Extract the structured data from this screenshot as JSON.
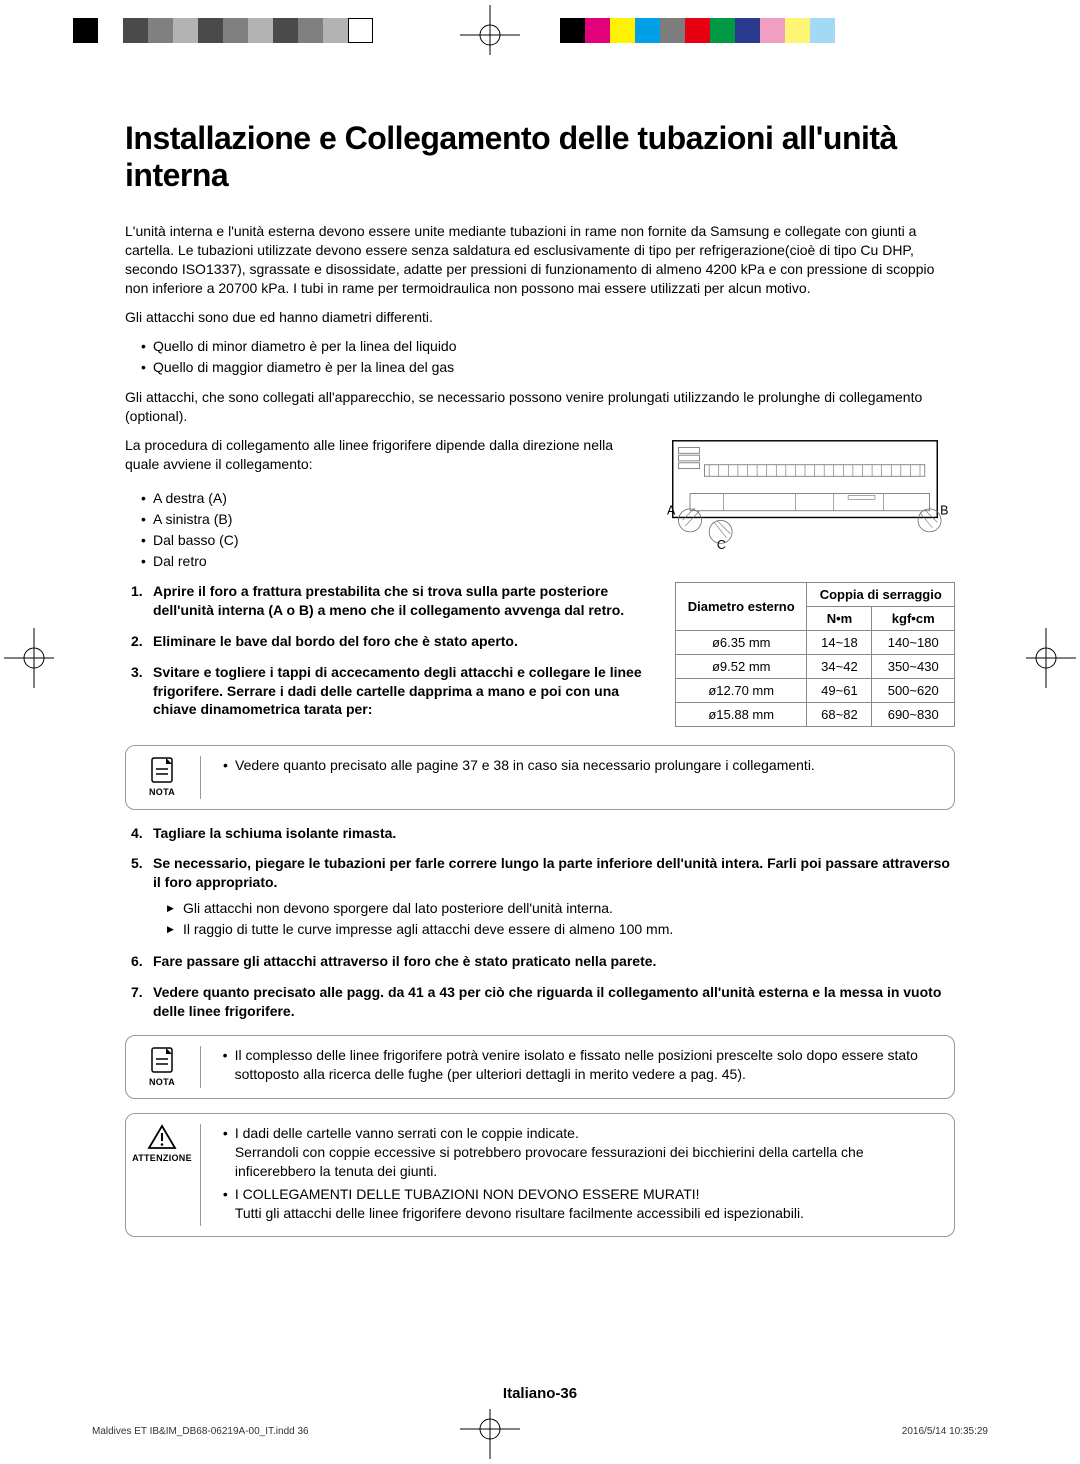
{
  "color_strip_left": [
    {
      "color": "#000000"
    },
    {
      "color": "#ffffff"
    },
    {
      "color": "#4a4a4a"
    },
    {
      "color": "#808080"
    },
    {
      "color": "#b3b3b3"
    },
    {
      "color": "#4a4a4a"
    },
    {
      "color": "#808080"
    },
    {
      "color": "#b3b3b3"
    },
    {
      "color": "#4a4a4a"
    },
    {
      "color": "#808080"
    },
    {
      "color": "#b3b3b3"
    },
    {
      "color": "none",
      "outlined": true
    }
  ],
  "color_strip_right": [
    {
      "color": "#000000"
    },
    {
      "color": "#e3007b"
    },
    {
      "color": "#fff100"
    },
    {
      "color": "#00a0e9"
    },
    {
      "color": "#7d7d7d"
    },
    {
      "color": "#e60012"
    },
    {
      "color": "#009944"
    },
    {
      "color": "#2a3a8f"
    },
    {
      "color": "#f19ec2"
    },
    {
      "color": "#fff575"
    },
    {
      "color": "#a3d9f5"
    },
    {
      "color": "#ffffff"
    }
  ],
  "title": "Installazione e Collegamento delle tubazioni all'unità interna",
  "intro": "L'unità interna e l'unità esterna devono essere unite mediante tubazioni in rame non fornite da Samsung e  collegate con giunti a cartella. Le tubazioni utilizzate devono essere senza saldatura ed esclusivamente di tipo per refrigerazione(cioè di tipo Cu DHP, secondo ISO1337), sgrassate e disossidate, adatte per pressioni di funzionamento di almeno 4200 kPa e con pressione di scoppio non inferiore a 20700 kPa. I tubi in rame per termoidraulica non possono mai essere utilizzati per alcun motivo.",
  "attachments_intro": "Gli attacchi sono due ed hanno diametri differenti.",
  "attachments_bullets": [
    "Quello di minor diametro è per la linea del liquido",
    "Quello di maggior diametro è per la linea del gas"
  ],
  "extension_note": "Gli attacchi, che sono collegati all'apparecchio, se necessario possono venire prolungati utilizzando le prolunghe di collegamento (optional).",
  "procedure_intro": "La procedura di collegamento alle linee frigorifere dipende dalla direzione nella quale avviene il collegamento:",
  "direction_bullets": [
    "A destra (A)",
    "A sinistra (B)",
    "Dal basso (C)",
    "Dal retro"
  ],
  "diagram_labels": {
    "A": "A",
    "B": "B",
    "C": "C"
  },
  "steps_123": [
    "Aprire il foro a frattura prestabilita che si trova sulla parte posteriore dell'unità interna (A o B) a meno che il collegamento avvenga dal retro.",
    "Eliminare le bave dal bordo del foro che è stato aperto.",
    "Svitare e togliere i tappi di accecamento degli attacchi e collegare le linee frigorifere. Serrare i dadi delle cartelle dapprima a mano e poi con una chiave dinamometrica tarata per:"
  ],
  "torque_table": {
    "header_diam": "Diametro esterno",
    "header_coppia": "Coppia di serraggio",
    "header_nm": "N•m",
    "header_kgf": "kgf•cm",
    "rows": [
      {
        "d": "ø6.35 mm",
        "nm": "14~18",
        "kgf": "140~180"
      },
      {
        "d": "ø9.52 mm",
        "nm": "34~42",
        "kgf": "350~430"
      },
      {
        "d": "ø12.70 mm",
        "nm": "49~61",
        "kgf": "500~620"
      },
      {
        "d": "ø15.88 mm",
        "nm": "68~82",
        "kgf": "690~830"
      }
    ]
  },
  "note1_label": "NOTA",
  "note1_text": "Vedere quanto precisato alle pagine 37 e 38  in caso sia necessario prolungare i collegamenti.",
  "step4": "Tagliare la schiuma isolante rimasta.",
  "step5": "Se necessario, piegare le tubazioni per farle correre lungo la parte inferiore dell'unità intera. Farli poi passare attraverso il foro appropriato.",
  "step5_subs": [
    "Gli attacchi non devono sporgere dal lato posteriore dell'unità interna.",
    "Il raggio di tutte le curve impresse agli attacchi deve essere di almeno 100 mm."
  ],
  "step6": "Fare passare gli attacchi attraverso il foro che è stato  praticato nella parete.",
  "step7": "Vedere quanto precisato alle pagg. da 41 a 43 per ciò che riguarda il collegamento all'unità esterna e la messa in vuoto delle linee frigorifere.",
  "note2_label": "NOTA",
  "note2_text": "Il complesso delle linee frigorifere potrà venire isolato e fissato nelle posizioni prescelte solo dopo essere stato sottoposto alla ricerca delle fughe (per ulteriori dettagli in merito vedere a pag. 45).",
  "attention_label": "ATTENZIONE",
  "attention_bullets": [
    "I dadi delle cartelle vanno serrati con  le coppie indicate.\nSerrandoli con coppie eccessive si potrebbero provocare fessurazioni dei bicchierini della cartella che inficerebbero la tenuta dei giunti.",
    "I COLLEGAMENTI DELLE TUBAZIONI NON DEVONO ESSERE MURATI!\nTutti gli attacchi delle linee frigorifere devono risultare facilmente accessibili ed ispezionabili."
  ],
  "page_number": "Italiano-36",
  "footer_left": "Maldives ET IB&IM_DB68-06219A-00_IT.indd   36",
  "footer_right": "2016/5/14   10:35:29"
}
